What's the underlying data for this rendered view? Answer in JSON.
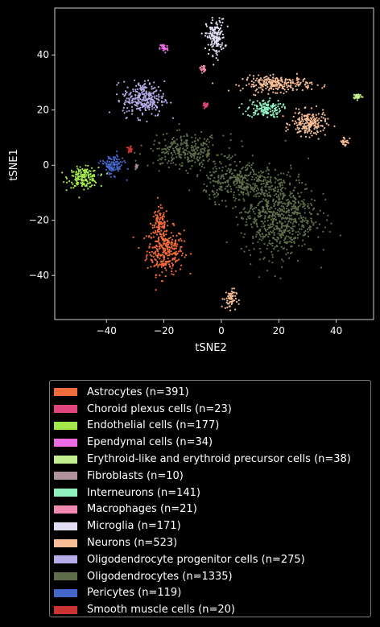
{
  "chart_data": {
    "type": "scatter",
    "title": "",
    "xlabel": "tSNE2",
    "ylabel": "tSNE1",
    "xlim": [
      -58,
      53
    ],
    "ylim": [
      -56,
      57
    ],
    "xticks": [
      -40,
      -20,
      0,
      20,
      40
    ],
    "yticks": [
      -40,
      -20,
      0,
      20,
      40
    ],
    "grid": false,
    "legend_position": "bottom-outside",
    "series": [
      {
        "name": "Astrocytes (n=391)",
        "color": "#f26b3a",
        "count": 391,
        "clusters": [
          {
            "center": [
              -19.5,
              -31
            ],
            "spread": [
              3.2,
              4.2
            ]
          },
          {
            "center": [
              -21.5,
              -21
            ],
            "spread": [
              1.5,
              2.8
            ]
          }
        ]
      },
      {
        "name": "Choroid plexus cells (n=23)",
        "color": "#e0457b",
        "count": 23,
        "clusters": [
          {
            "center": [
              -5.5,
              21.5
            ],
            "spread": [
              0.5,
              0.6
            ]
          }
        ]
      },
      {
        "name": "Endothelial cells (n=177)",
        "color": "#a3e84b",
        "count": 177,
        "clusters": [
          {
            "center": [
              -48,
              -4.5
            ],
            "spread": [
              2.6,
              1.8
            ]
          }
        ]
      },
      {
        "name": "Ependymal cells (n=34)",
        "color": "#ee6ce3",
        "count": 34,
        "clusters": [
          {
            "center": [
              -20,
              42.5
            ],
            "spread": [
              0.7,
              0.9
            ]
          }
        ]
      },
      {
        "name": "Erythroid-like and erythroid precursor cells (n=38)",
        "color": "#c3ee8e",
        "count": 38,
        "clusters": [
          {
            "center": [
              47.5,
              25
            ],
            "spread": [
              0.8,
              0.5
            ]
          }
        ]
      },
      {
        "name": "Fibroblasts (n=10)",
        "color": "#b0929c",
        "count": 10,
        "clusters": [
          {
            "center": [
              -29.5,
              -0.5
            ],
            "spread": [
              0.3,
              0.6
            ]
          }
        ]
      },
      {
        "name": "Interneurons (n=141)",
        "color": "#8ff0c0",
        "count": 141,
        "clusters": [
          {
            "center": [
              15,
              20.5
            ],
            "spread": [
              3.0,
              1.6
            ]
          }
        ]
      },
      {
        "name": "Macrophages (n=21)",
        "color": "#f08ab0",
        "count": 21,
        "clusters": [
          {
            "center": [
              -6.5,
              35
            ],
            "spread": [
              0.5,
              0.7
            ]
          }
        ]
      },
      {
        "name": "Microglia (n=171)",
        "color": "#e1dcf0",
        "count": 171,
        "clusters": [
          {
            "center": [
              -2,
              46.5
            ],
            "spread": [
              1.6,
              3.2
            ]
          }
        ]
      },
      {
        "name": "Neurons (n=523)",
        "color": "#f6bd96",
        "count": 523,
        "clusters": [
          {
            "center": [
              19.5,
              29.5
            ],
            "spread": [
              6.0,
              1.4
            ]
          },
          {
            "center": [
              30.5,
              15
            ],
            "spread": [
              3.0,
              2.2
            ]
          },
          {
            "center": [
              43,
              8.5
            ],
            "spread": [
              0.8,
              1.0
            ]
          },
          {
            "center": [
              3,
              -48.5
            ],
            "spread": [
              1.1,
              1.8
            ]
          }
        ]
      },
      {
        "name": "Oligodendrocyte progenitor cells (n=275)",
        "color": "#b7acea",
        "count": 275,
        "clusters": [
          {
            "center": [
              -27,
              24
            ],
            "spread": [
              3.6,
              3.2
            ]
          }
        ]
      },
      {
        "name": "Oligodendrocytes (n=1335)",
        "color": "#5e6d4a",
        "count": 1335,
        "clusters": [
          {
            "center": [
              20,
              -18
            ],
            "spread": [
              6.5,
              7.5
            ]
          },
          {
            "center": [
              6,
              -6
            ],
            "spread": [
              6.0,
              3.5
            ]
          },
          {
            "center": [
              -12,
              5
            ],
            "spread": [
              6.5,
              3.0
            ]
          }
        ]
      },
      {
        "name": "Pericytes (n=119)",
        "color": "#4466c8",
        "count": 119,
        "clusters": [
          {
            "center": [
              -38,
              0
            ],
            "spread": [
              2.0,
              1.8
            ]
          }
        ]
      },
      {
        "name": "Smooth muscle cells (n=20)",
        "color": "#cc3333",
        "count": 20,
        "clusters": [
          {
            "center": [
              -32,
              5.5
            ],
            "spread": [
              0.5,
              0.6
            ]
          }
        ]
      }
    ]
  }
}
